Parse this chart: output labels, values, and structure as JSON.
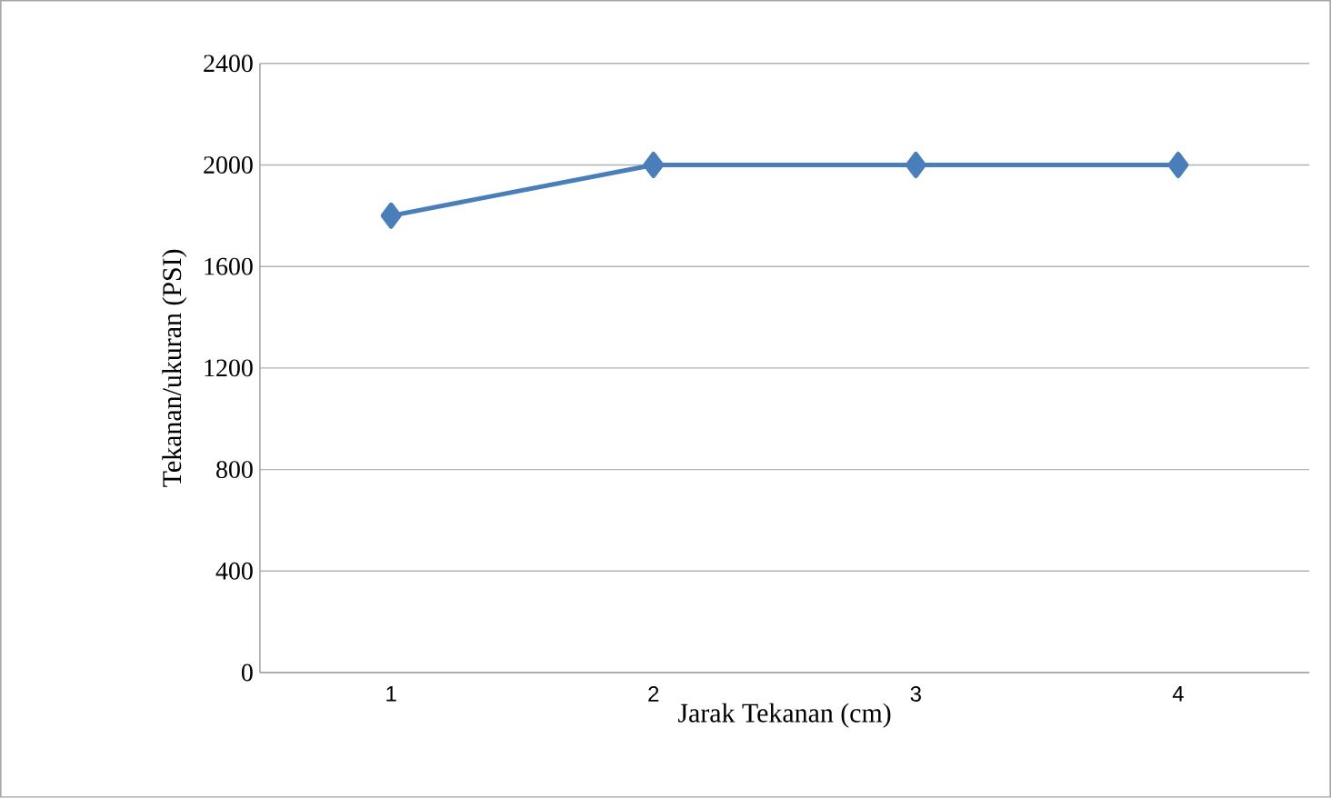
{
  "chart_data": {
    "type": "line",
    "xlabel": "Jarak Tekanan (cm)",
    "ylabel": "Tekanan/ukuran (PSI)",
    "categories": [
      "1",
      "2",
      "3",
      "4"
    ],
    "series": [
      {
        "color": "#4a7ebb",
        "values": [
          1800,
          2000,
          2000,
          2000
        ]
      }
    ],
    "ylim": [
      0,
      2400
    ],
    "yticks": [
      0,
      400,
      800,
      1200,
      1600,
      2000,
      2400
    ],
    "grid": "y",
    "marker": "diamond",
    "line_style": "solid"
  }
}
